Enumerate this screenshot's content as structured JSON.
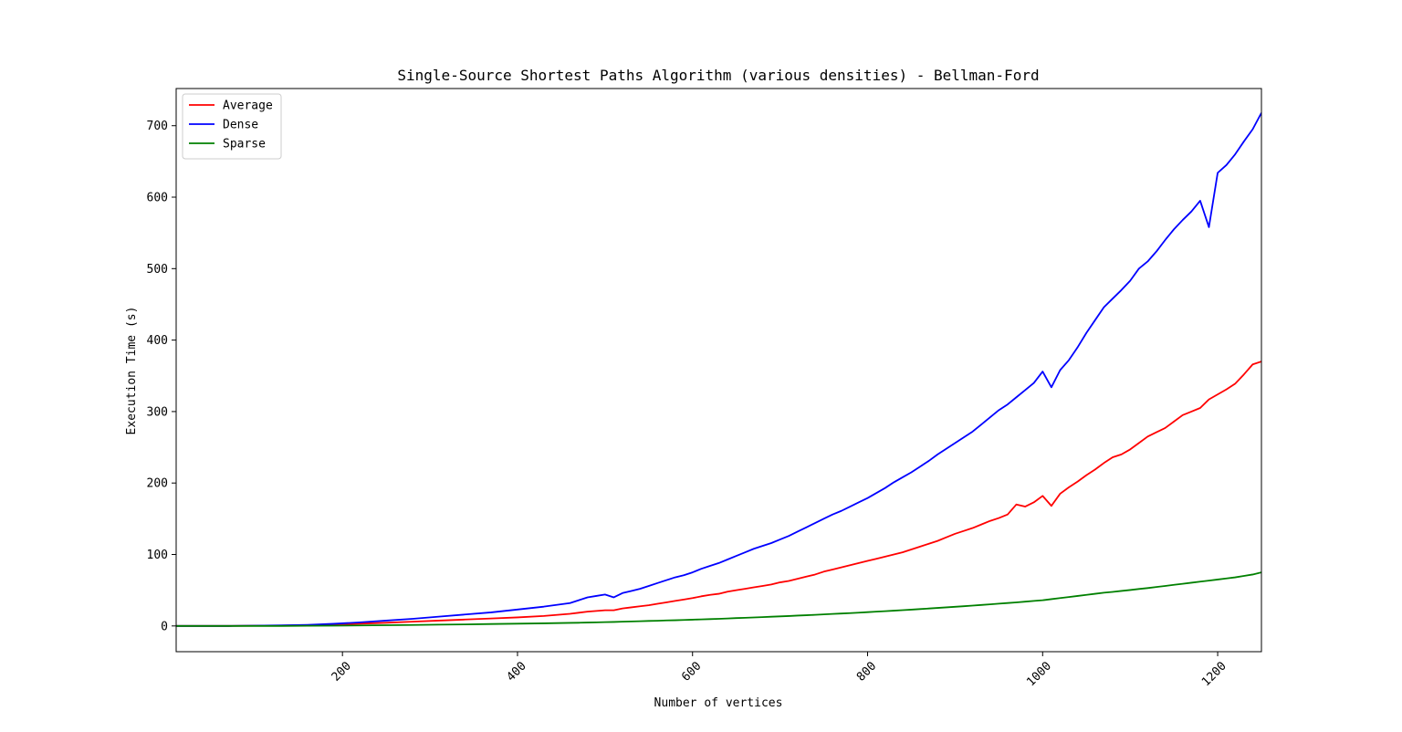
{
  "chart_data": {
    "type": "line",
    "title": "Single-Source Shortest Paths Algorithm (various densities) - Bellman-Ford",
    "xlabel": "Number of vertices",
    "ylabel": "Execution Time (s)",
    "xlim": [
      10,
      1250
    ],
    "ylim": [
      -36,
      752
    ],
    "xticks": [
      200,
      400,
      600,
      800,
      1000,
      1200
    ],
    "yticks": [
      0,
      100,
      200,
      300,
      400,
      500,
      600,
      700
    ],
    "grid": false,
    "legend_position": "upper-left",
    "x": [
      10,
      40,
      70,
      100,
      130,
      160,
      190,
      220,
      250,
      280,
      310,
      340,
      370,
      400,
      430,
      460,
      470,
      480,
      490,
      500,
      510,
      520,
      530,
      540,
      550,
      560,
      570,
      580,
      590,
      600,
      610,
      620,
      630,
      640,
      650,
      660,
      670,
      680,
      690,
      700,
      710,
      720,
      730,
      740,
      750,
      760,
      770,
      780,
      790,
      800,
      810,
      820,
      830,
      840,
      850,
      860,
      870,
      880,
      890,
      900,
      910,
      920,
      930,
      940,
      950,
      960,
      970,
      980,
      990,
      1000,
      1010,
      1020,
      1030,
      1040,
      1050,
      1060,
      1070,
      1080,
      1090,
      1100,
      1110,
      1120,
      1130,
      1140,
      1150,
      1160,
      1170,
      1180,
      1190,
      1200,
      1210,
      1220,
      1230,
      1240,
      1250
    ],
    "series": [
      {
        "name": "Average",
        "color": "#ff0000",
        "values": [
          0,
          0,
          0,
          0.3,
          0.6,
          1.2,
          2,
          3.2,
          4.5,
          6,
          7.5,
          9,
          10.5,
          12,
          14,
          17,
          18.5,
          20,
          21,
          22,
          22,
          24.5,
          26,
          27.5,
          29,
          31,
          33,
          35,
          37,
          39,
          41.5,
          43.5,
          45,
          48,
          50,
          52,
          54,
          56,
          58,
          61,
          63,
          66,
          69,
          72,
          76,
          79,
          82,
          85,
          88,
          91,
          94,
          97,
          100,
          103,
          107,
          111,
          115,
          119,
          124,
          129,
          133,
          137,
          142,
          147,
          151,
          156,
          170,
          167,
          173,
          182,
          168,
          185,
          194,
          202,
          211,
          219,
          228,
          236,
          240,
          247,
          256,
          265,
          271,
          277,
          286,
          295,
          300,
          305,
          317,
          324,
          331,
          339,
          352,
          366,
          370
        ]
      },
      {
        "name": "Dense",
        "color": "#0000ff",
        "values": [
          0,
          0,
          0,
          0.4,
          0.8,
          1.5,
          3,
          5,
          7.5,
          10,
          13,
          16,
          19,
          23,
          27,
          32,
          36,
          40,
          42,
          44,
          40,
          46,
          49,
          52,
          56,
          60,
          64,
          68,
          71,
          75,
          80,
          84,
          88,
          93,
          98,
          103,
          108,
          112,
          116,
          121,
          126,
          132,
          138,
          144,
          150,
          156,
          161,
          167,
          173,
          179,
          186,
          193,
          201,
          208,
          215,
          223,
          231,
          240,
          248,
          256,
          264,
          272,
          282,
          292,
          302,
          310,
          320,
          330,
          340,
          356,
          334,
          358,
          372,
          390,
          410,
          428,
          446,
          458,
          470,
          483,
          500,
          510,
          524,
          540,
          555,
          568,
          580,
          595,
          558,
          634,
          645,
          660,
          678,
          695,
          718
        ]
      },
      {
        "name": "Sparse",
        "color": "#008000",
        "values": [
          0,
          0,
          0,
          0,
          0,
          0.2,
          0.4,
          0.7,
          1,
          1.4,
          1.8,
          2.2,
          2.7,
          3.2,
          3.7,
          4.3,
          4.5,
          4.8,
          5,
          5.3,
          5.6,
          6,
          6.3,
          6.6,
          7,
          7.3,
          7.7,
          8,
          8.4,
          8.8,
          9.2,
          9.6,
          10,
          10.5,
          11,
          11.4,
          11.9,
          12.4,
          12.9,
          13.4,
          13.9,
          14.5,
          15,
          15.6,
          16.2,
          16.8,
          17.4,
          18,
          18.6,
          19.3,
          20,
          20.7,
          21.4,
          22.1,
          22.8,
          23.6,
          24.4,
          25.2,
          26,
          26.8,
          27.6,
          28.5,
          29.4,
          30.3,
          31.2,
          32.1,
          33,
          34,
          35,
          36,
          37.5,
          39,
          40.5,
          42,
          43.5,
          45,
          46.5,
          47.7,
          49,
          50.3,
          51.7,
          53,
          54.5,
          56,
          57.5,
          59,
          60.5,
          62,
          63.5,
          65,
          66.5,
          68,
          70,
          72,
          75
        ]
      }
    ]
  }
}
